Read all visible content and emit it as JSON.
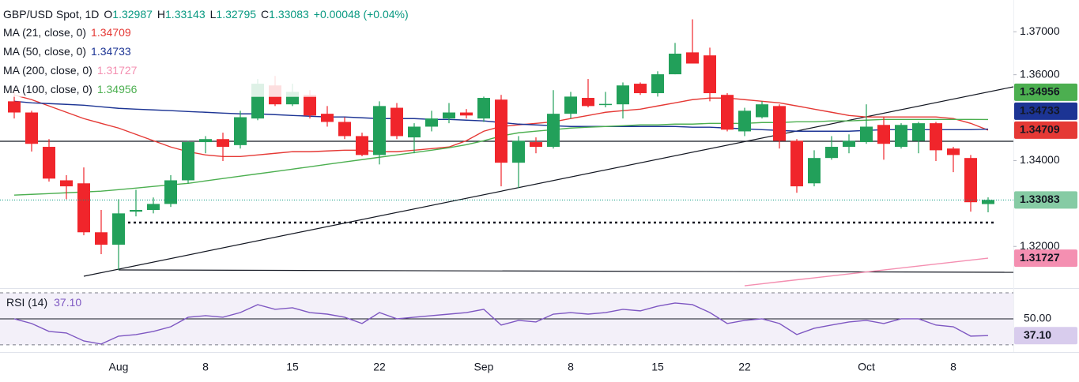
{
  "chart_data": {
    "type": "candlestick",
    "header": {
      "symbol": "GBP/USD Spot, 1D",
      "ohlc_labels": [
        "O",
        "H",
        "L",
        "C"
      ],
      "change": "+0.00048 (+0.04%)"
    },
    "categories": [
      null,
      null,
      null,
      null,
      null,
      null,
      "Aug",
      null,
      null,
      null,
      null,
      "8",
      null,
      null,
      null,
      null,
      "15",
      null,
      null,
      null,
      null,
      "22",
      null,
      null,
      null,
      null,
      null,
      "Sep",
      null,
      null,
      null,
      null,
      "8",
      null,
      null,
      null,
      null,
      "15",
      null,
      null,
      null,
      null,
      "22",
      null,
      null,
      null,
      null,
      null,
      null,
      "Oct",
      null,
      null,
      null,
      null,
      "8",
      null,
      null
    ],
    "open": [
      1.3538,
      1.3512,
      1.3432,
      1.3354,
      1.3347,
      1.3233,
      1.3204,
      1.3281,
      1.3285,
      1.3299,
      1.3354,
      1.3443,
      1.345,
      1.3436,
      1.3498,
      1.3575,
      1.3531,
      1.3553,
      1.3509,
      1.349,
      1.3457,
      1.3413,
      1.3523,
      1.3454,
      1.3479,
      1.3498,
      1.3512,
      1.3498,
      1.3542,
      1.3395,
      1.3443,
      1.3432,
      1.3509,
      1.3546,
      1.353,
      1.3531,
      1.3579,
      1.3557,
      1.3601,
      1.3652,
      1.3645,
      1.3553,
      1.3468,
      1.3501,
      1.3527,
      1.3446,
      1.3347,
      1.3406,
      1.3432,
      1.3443,
      1.3483,
      1.3432,
      1.3446,
      1.3487,
      1.3428,
      1.3406,
      1.32987
    ],
    "high": [
      1.3568,
      1.3516,
      1.345,
      1.3366,
      1.3384,
      1.3285,
      1.331,
      1.3332,
      1.3314,
      1.3366,
      1.3446,
      1.3457,
      1.3465,
      1.3516,
      1.359,
      1.3597,
      1.3579,
      1.3564,
      1.3527,
      1.3501,
      1.3465,
      1.3538,
      1.3534,
      1.3487,
      1.3516,
      1.3534,
      1.352,
      1.3549,
      1.3553,
      1.3457,
      1.3454,
      1.3564,
      1.356,
      1.359,
      1.356,
      1.3582,
      1.3582,
      1.3608,
      1.3674,
      1.3729,
      1.3663,
      1.3557,
      1.3523,
      1.3538,
      1.3531,
      1.345,
      1.3424,
      1.3457,
      1.3461,
      1.3531,
      1.3501,
      1.3487,
      1.349,
      1.349,
      1.3432,
      1.3413,
      1.33143
    ],
    "low": [
      1.3498,
      1.3421,
      1.3351,
      1.331,
      1.3226,
      1.3182,
      1.3145,
      1.327,
      1.3277,
      1.3292,
      1.3347,
      1.3417,
      1.3399,
      1.3428,
      1.3494,
      1.3527,
      1.3527,
      1.3498,
      1.3479,
      1.345,
      1.341,
      1.3391,
      1.345,
      1.3417,
      1.3468,
      1.3487,
      1.3498,
      1.349,
      1.334,
      1.3336,
      1.3417,
      1.3428,
      1.3498,
      1.3524,
      1.3524,
      1.3498,
      1.3553,
      1.3549,
      1.3601,
      1.3626,
      1.3538,
      1.3468,
      1.3457,
      1.3498,
      1.3428,
      1.3325,
      1.334,
      1.3402,
      1.3417,
      1.3439,
      1.3402,
      1.3428,
      1.3417,
      1.3399,
      1.3373,
      1.3281,
      1.32795
    ],
    "close": [
      1.3512,
      1.3439,
      1.3358,
      1.334,
      1.3233,
      1.3204,
      1.3277,
      1.3285,
      1.3299,
      1.3354,
      1.3443,
      1.345,
      1.3432,
      1.3501,
      1.3579,
      1.3531,
      1.356,
      1.3505,
      1.349,
      1.3457,
      1.3413,
      1.3527,
      1.3457,
      1.3479,
      1.3498,
      1.3512,
      1.3505,
      1.3546,
      1.3395,
      1.3446,
      1.3432,
      1.3509,
      1.3549,
      1.3527,
      1.3532,
      1.3575,
      1.3557,
      1.3601,
      1.3649,
      1.3626,
      1.3557,
      1.3472,
      1.3516,
      1.3531,
      1.3446,
      1.334,
      1.3406,
      1.3432,
      1.3446,
      1.3479,
      1.3439,
      1.3483,
      1.3487,
      1.3424,
      1.3413,
      1.3303,
      1.33083
    ],
    "up_color": "#22a05a",
    "down_color": "#f0252b",
    "ylim": [
      1.3103,
      1.3774
    ],
    "yticks": [
      {
        "value": 1.32,
        "label": "1.32000"
      },
      {
        "value": 1.34,
        "label": "1.34000"
      },
      {
        "value": 1.36,
        "label": "1.36000"
      },
      {
        "value": 1.37,
        "label": "1.37000"
      }
    ],
    "ma_series": [
      {
        "name": "MA (21, close, 0)",
        "color": "#e53935",
        "values": [
          1.35529,
          1.35419,
          1.35272,
          1.35125,
          1.34978,
          1.34867,
          1.34757,
          1.3461,
          1.34463,
          1.34316,
          1.34206,
          1.34132,
          1.34095,
          1.34095,
          1.34132,
          1.34169,
          1.34206,
          1.34206,
          1.34224,
          1.34242,
          1.34242,
          1.34206,
          1.34206,
          1.34242,
          1.34279,
          1.34316,
          1.34463,
          1.34684,
          1.34794,
          1.34831,
          1.34867,
          1.34904,
          1.34978,
          1.35051,
          1.35125,
          1.35162,
          1.35198,
          1.35272,
          1.35345,
          1.35419,
          1.35456,
          1.35456,
          1.35419,
          1.35382,
          1.35345,
          1.35272,
          1.35198,
          1.35125,
          1.35051,
          1.35015,
          1.35015,
          1.35015,
          1.35015,
          1.35015,
          1.34978,
          1.34867,
          1.34709
        ]
      },
      {
        "name": "MA (50, close, 0)",
        "color": "#1c3494",
        "values": [
          1.35382,
          1.35345,
          1.35327,
          1.35309,
          1.3529,
          1.35253,
          1.35217,
          1.35198,
          1.3518,
          1.35162,
          1.35143,
          1.35125,
          1.35106,
          1.35088,
          1.35088,
          1.3507,
          1.35051,
          1.35033,
          1.35015,
          1.35015,
          1.34996,
          1.34978,
          1.34978,
          1.34978,
          1.34959,
          1.34959,
          1.34941,
          1.34923,
          1.34886,
          1.34849,
          1.34831,
          1.34812,
          1.34794,
          1.34794,
          1.34794,
          1.34794,
          1.34794,
          1.34794,
          1.34794,
          1.34776,
          1.34776,
          1.34757,
          1.34739,
          1.3472,
          1.34702,
          1.34684,
          1.34684,
          1.34684,
          1.34684,
          1.34702,
          1.3472,
          1.3472,
          1.3472,
          1.3472,
          1.3472,
          1.3472,
          1.34733
        ]
      },
      {
        "name": "MA (200, close, 0)",
        "color": "#f48fb1",
        "values": [
          null,
          null,
          null,
          null,
          null,
          null,
          null,
          null,
          null,
          null,
          null,
          null,
          null,
          null,
          null,
          null,
          null,
          null,
          null,
          null,
          null,
          null,
          null,
          null,
          null,
          null,
          null,
          null,
          null,
          null,
          null,
          null,
          null,
          null,
          null,
          null,
          null,
          null,
          null,
          null,
          null,
          null,
          1.31085,
          1.31131,
          1.31177,
          1.31223,
          1.31268,
          1.31314,
          1.3136,
          1.31406,
          1.31452,
          1.31498,
          1.31544,
          1.31589,
          1.31635,
          1.31681,
          1.31727
        ]
      },
      {
        "name": "MA (100, close, 0)",
        "color": "#4caf50",
        "values": [
          1.33195,
          1.33213,
          1.33231,
          1.3325,
          1.33268,
          1.33287,
          1.33323,
          1.3336,
          1.33397,
          1.33434,
          1.3347,
          1.33526,
          1.33581,
          1.33636,
          1.33691,
          1.33746,
          1.33801,
          1.33856,
          1.33912,
          1.33967,
          1.34022,
          1.34077,
          1.34132,
          1.34187,
          1.34242,
          1.34298,
          1.34371,
          1.34463,
          1.34573,
          1.34647,
          1.34684,
          1.3472,
          1.34757,
          1.34776,
          1.34794,
          1.34812,
          1.34831,
          1.34831,
          1.34849,
          1.34849,
          1.34867,
          1.34867,
          1.34867,
          1.34886,
          1.34886,
          1.34904,
          1.34904,
          1.34923,
          1.34923,
          1.34941,
          1.34959,
          1.34959,
          1.34959,
          1.34959,
          1.34959,
          1.34959,
          1.34956
        ]
      }
    ],
    "rsi": {
      "name": "RSI (14)",
      "color": "#7e57c2",
      "ylim": [
        24.5,
        73
      ],
      "yticks": [
        {
          "value": 50,
          "label": "50.00"
        }
      ],
      "levels": [
        70,
        30
      ],
      "values": [
        50.0,
        46.4,
        40.3,
        39.1,
        33.0,
        30.6,
        36.7,
        37.9,
        40.3,
        43.9,
        51.2,
        52.4,
        51.2,
        54.8,
        60.9,
        57.3,
        58.5,
        54.8,
        53.6,
        51.2,
        46.4,
        54.8,
        50.0,
        51.2,
        52.4,
        53.6,
        54.8,
        57.3,
        45.2,
        48.8,
        47.6,
        53.6,
        54.8,
        53.6,
        54.8,
        57.3,
        56.1,
        59.7,
        62.1,
        60.9,
        54.8,
        46.4,
        48.8,
        50.0,
        46.4,
        37.9,
        42.7,
        45.2,
        47.6,
        48.8,
        46.4,
        50.0,
        50.0,
        45.2,
        43.9,
        36.7,
        37.1
      ],
      "value_labels": [
        null,
        null,
        null,
        null,
        null,
        null,
        null,
        null,
        null,
        null,
        null,
        null,
        null,
        null,
        null,
        null,
        null,
        null,
        null,
        null,
        null,
        null,
        null,
        null,
        null,
        null,
        null,
        null,
        null,
        null,
        null,
        null,
        null,
        null,
        null,
        null,
        null,
        null,
        null,
        null,
        null,
        null,
        null,
        null,
        null,
        null,
        null,
        null,
        null,
        null,
        null,
        null,
        null,
        null,
        null,
        null,
        "37.10"
      ]
    }
  }
}
